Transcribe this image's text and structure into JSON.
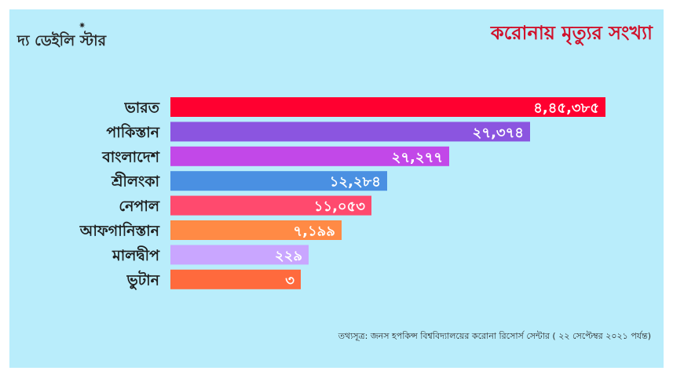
{
  "brand": {
    "logo_text": "দ্য ডেইলি স্টার"
  },
  "chart_data": {
    "type": "bar",
    "orientation": "horizontal",
    "title": "করোনায় মৃত্যুর সংখ্যা",
    "categories": [
      "ভারত",
      "পাকিস্তান",
      "বাংলাদেশ",
      "শ্রীলংকা",
      "নেপাল",
      "আফগানিস্তান",
      "মালদ্বীপ",
      "ভুটান"
    ],
    "values": [
      445385,
      27374,
      27277,
      12284,
      11053,
      7199,
      229,
      3
    ],
    "value_labels": [
      "৪,৪৫,৩৮৫",
      "২৭,৩৭৪",
      "২৭,২৭৭",
      "১২,২৮৪",
      "১১,০৫৩",
      "৭,১৯৯",
      "২২৯",
      "৩"
    ],
    "colors": [
      "#ff0030",
      "#8b55e0",
      "#c248e8",
      "#4a90e2",
      "#ff4a6e",
      "#ff8a45",
      "#c9a6ff",
      "#ff6a3d"
    ],
    "axis_visible": false,
    "grid": false,
    "source_note": "তথ্যসূত্র: জনস হপকিন্স বিশ্ববিদ্যালয়ের করোনা রিসোর্স সেন্টার ( ২২ সেপ্টেম্বর ২০২১ পর্যন্ত)"
  }
}
